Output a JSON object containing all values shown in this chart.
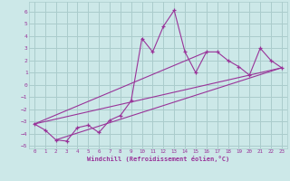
{
  "title": "",
  "xlabel": "Windchill (Refroidissement éolien,°C)",
  "bg_color": "#cce8e8",
  "grid_color": "#aacccc",
  "line_color": "#993399",
  "xlim": [
    -0.5,
    23.5
  ],
  "ylim": [
    -5.2,
    6.8
  ],
  "xticks": [
    0,
    1,
    2,
    3,
    4,
    5,
    6,
    7,
    8,
    9,
    10,
    11,
    12,
    13,
    14,
    15,
    16,
    17,
    18,
    19,
    20,
    21,
    22,
    23
  ],
  "yticks": [
    -5,
    -4,
    -3,
    -2,
    -1,
    0,
    1,
    2,
    3,
    4,
    5,
    6
  ],
  "main_series_x": [
    0,
    1,
    2,
    3,
    4,
    5,
    6,
    7,
    8,
    9,
    10,
    11,
    12,
    13,
    14,
    15,
    16,
    17,
    18,
    19,
    20,
    21,
    22,
    23
  ],
  "main_series_y": [
    -3.2,
    -3.7,
    -4.5,
    -4.6,
    -3.5,
    -3.3,
    -3.9,
    -2.9,
    -2.5,
    -1.3,
    3.8,
    2.7,
    4.8,
    6.1,
    2.7,
    1.0,
    2.7,
    2.7,
    2.0,
    1.5,
    0.8,
    3.0,
    2.0,
    1.4
  ],
  "line1_x": [
    0,
    23
  ],
  "line1_y": [
    -3.2,
    1.4
  ],
  "line2_x": [
    2,
    23
  ],
  "line2_y": [
    -4.5,
    1.4
  ],
  "line3_x": [
    0,
    16
  ],
  "line3_y": [
    -3.2,
    2.7
  ]
}
